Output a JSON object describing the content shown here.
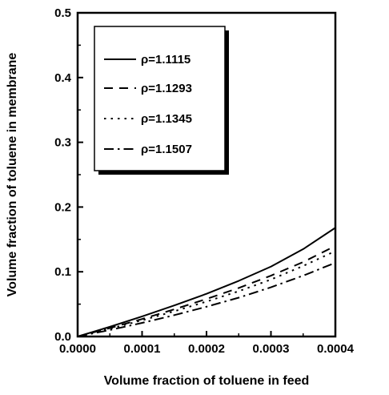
{
  "chart_data": {
    "type": "line",
    "xlabel": "Volume fraction of toluene in feed",
    "ylabel": "Volume fraction of toluene in membrane",
    "xlim": [
      0,
      0.0004
    ],
    "ylim": [
      0,
      0.5
    ],
    "x_ticks": [
      0,
      0.0001,
      0.0002,
      0.0003,
      0.0004
    ],
    "x_tick_labels": [
      "0.0000",
      "0.0001",
      "0.0002",
      "0.0003",
      "0.0004"
    ],
    "y_ticks": [
      0,
      0.1,
      0.2,
      0.3,
      0.4,
      0.5
    ],
    "y_tick_labels": [
      "0.0",
      "0.1",
      "0.2",
      "0.3",
      "0.4",
      "0.5"
    ],
    "grid": false,
    "legend_position": "top-left",
    "x": [
      0,
      5e-05,
      0.0001,
      0.00015,
      0.0002,
      0.00025,
      0.0003,
      0.00035,
      0.0004
    ],
    "series": [
      {
        "name": "ρ=1.1115",
        "style": "solid",
        "values": [
          0,
          0.015,
          0.031,
          0.048,
          0.066,
          0.086,
          0.108,
          0.135,
          0.168
        ]
      },
      {
        "name": "ρ=1.1293",
        "style": "dashed",
        "values": [
          0,
          0.013,
          0.027,
          0.042,
          0.058,
          0.075,
          0.094,
          0.115,
          0.14
        ]
      },
      {
        "name": "ρ=1.1345",
        "style": "dotted",
        "values": [
          0,
          0.012,
          0.025,
          0.039,
          0.054,
          0.07,
          0.088,
          0.109,
          0.132
        ]
      },
      {
        "name": "ρ=1.1507",
        "style": "dashdot",
        "values": [
          0,
          0.01,
          0.021,
          0.033,
          0.046,
          0.06,
          0.076,
          0.094,
          0.114
        ]
      }
    ]
  }
}
